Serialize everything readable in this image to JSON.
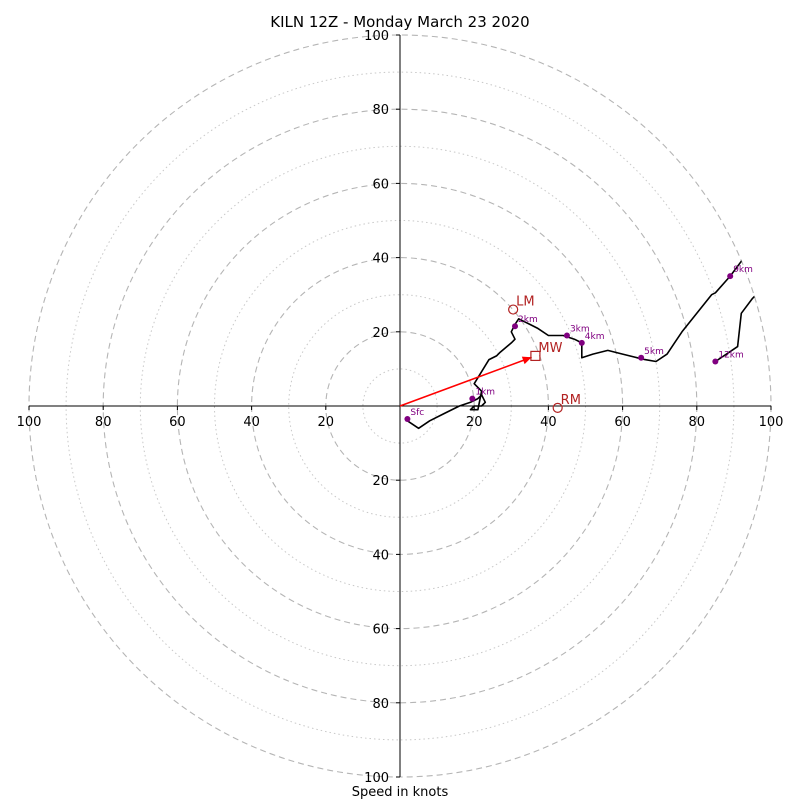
{
  "chart_data": {
    "type": "hodograph",
    "title": "KILN 12Z - Monday March 23 2020",
    "xlabel": "Speed in knots",
    "axis_range": [
      -100,
      100
    ],
    "ring_major": [
      20,
      40,
      60,
      80,
      100
    ],
    "ring_minor": [
      10,
      30,
      50,
      70,
      90
    ],
    "x_ticks": [
      "100",
      "80",
      "60",
      "40",
      "20",
      "20",
      "40",
      "60",
      "80",
      "100"
    ],
    "x_tick_values": [
      -100,
      -80,
      -60,
      -40,
      -20,
      20,
      40,
      60,
      80,
      100
    ],
    "y_ticks": [
      "100",
      "80",
      "60",
      "40",
      "20",
      "20",
      "40",
      "60",
      "80",
      "100"
    ],
    "y_tick_values": [
      100,
      80,
      60,
      40,
      20,
      -20,
      -40,
      -60,
      -80,
      -100
    ],
    "profile": {
      "color": "#000000",
      "u": [
        2,
        5,
        8,
        12,
        16,
        19,
        21,
        22,
        23,
        22,
        20,
        19,
        21,
        22,
        20,
        24,
        26,
        27,
        30,
        31,
        30,
        31,
        32,
        33,
        35,
        37,
        40,
        44,
        47,
        49,
        49,
        49,
        52,
        56,
        60,
        64,
        66,
        69,
        72,
        74,
        76,
        80,
        84,
        85,
        89,
        92,
        96,
        100
      ],
      "v": [
        -4,
        -6,
        -4,
        -2,
        0,
        1,
        2,
        3,
        1,
        0,
        0,
        -1,
        -1,
        4,
        6,
        12.5,
        13.5,
        14.5,
        17,
        18,
        20,
        22,
        23.5,
        23,
        22,
        21,
        19,
        19,
        18,
        17,
        15,
        13,
        14,
        15,
        14,
        13,
        12.5,
        12,
        14,
        17,
        20,
        25,
        30,
        30.5,
        35,
        39,
        45,
        41
      ]
    },
    "profile_upper": {
      "color": "#000000",
      "u": [
        85,
        88,
        91,
        92,
        95,
        100
      ],
      "v": [
        12,
        14,
        16,
        25,
        29,
        34
      ]
    },
    "height_markers": [
      {
        "label": "Sfc",
        "u": 2,
        "v": -3.5
      },
      {
        "label": "1km",
        "u": 19.5,
        "v": 2
      },
      {
        "label": "2km",
        "u": 31,
        "v": 21.5
      },
      {
        "label": "3km",
        "u": 45,
        "v": 19
      },
      {
        "label": "4km",
        "u": 49,
        "v": 17
      },
      {
        "label": "5km",
        "u": 65,
        "v": 13
      },
      {
        "label": "9km",
        "u": 89,
        "v": 35
      },
      {
        "label": "12km",
        "u": 85,
        "v": 12
      }
    ],
    "marker_color": "#800080",
    "motions": [
      {
        "label": "LM",
        "u": 30.5,
        "v": 26,
        "shape": "circle"
      },
      {
        "label": "RM",
        "u": 42.5,
        "v": -0.5,
        "shape": "circle"
      },
      {
        "label": "MW",
        "u": 36.5,
        "v": 13.5,
        "shape": "square"
      }
    ],
    "motion_color": "#b22222",
    "mean_wind_vector": {
      "u": 36.5,
      "v": 13.5,
      "color": "#ff0000"
    },
    "grid": true
  }
}
